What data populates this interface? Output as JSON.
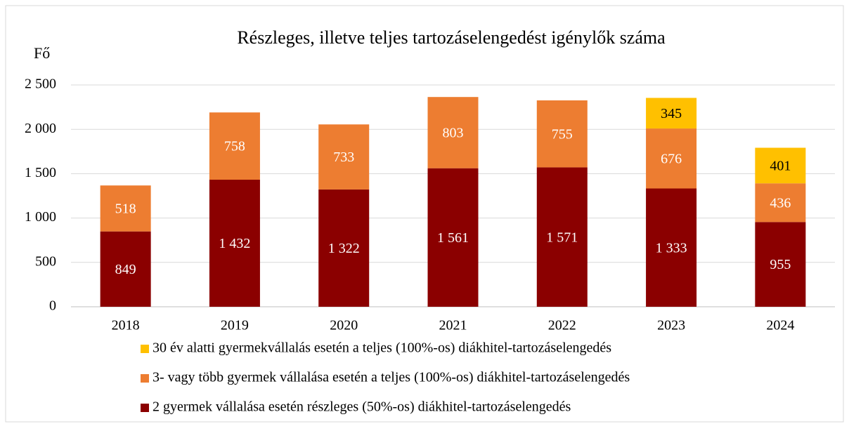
{
  "chart_data": {
    "type": "stacked_bar",
    "title": "Részleges, illetve teljes tartozáselengedést igénylők száma",
    "ylabel": "Fő",
    "categories": [
      "2018",
      "2019",
      "2020",
      "2021",
      "2022",
      "2023",
      "2024"
    ],
    "series": [
      {
        "name": "30 év alatti gyermekvállalás esetén a teljes (100%-os) diákhitel-tartozáselengedés",
        "color": "#ffc000",
        "values": [
          null,
          null,
          null,
          null,
          null,
          345,
          401
        ]
      },
      {
        "name": "3- vagy több gyermek vállalása esetén a teljes (100%-os) diákhitel-tartozáselengedés",
        "color": "#ed7d31",
        "values": [
          518,
          758,
          733,
          803,
          755,
          676,
          436
        ]
      },
      {
        "name": "2 gyermek vállalása esetén részleges (50%-os) diákhitel-tartozáselengedés",
        "color": "#8b0000",
        "values": [
          849,
          1432,
          1322,
          1561,
          1571,
          1333,
          955
        ],
        "value_labels": [
          "849",
          "1 432",
          "1 322",
          "1 561",
          "1 571",
          "1 333",
          "955"
        ]
      }
    ],
    "ylim": [
      0,
      2500
    ],
    "yticks": [
      0,
      500,
      {
        "value": 1000,
        "label": "1 000"
      },
      {
        "value": 1500,
        "label": "1 500"
      },
      {
        "value": 2000,
        "label": "2 000"
      },
      {
        "value": 2500,
        "label": "2 500"
      }
    ],
    "grid": true
  }
}
